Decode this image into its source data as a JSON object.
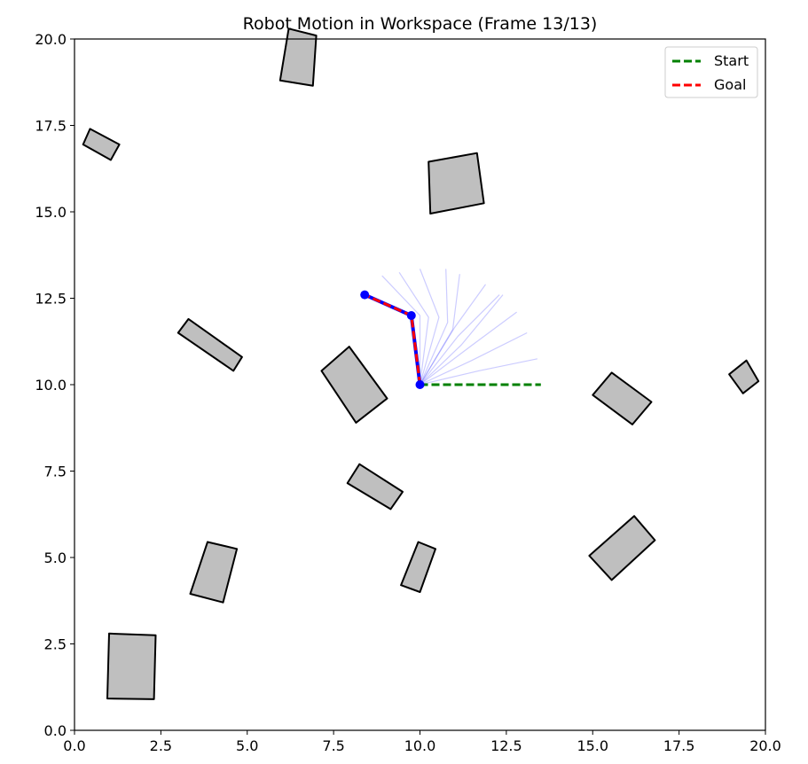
{
  "chart_data": {
    "type": "line",
    "title": "Robot Motion in Workspace (Frame 13/13)",
    "xlim": [
      0,
      20
    ],
    "ylim": [
      0,
      20
    ],
    "xticks": [
      "0.0",
      "2.5",
      "5.0",
      "7.5",
      "10.0",
      "12.5",
      "15.0",
      "17.5",
      "20.0"
    ],
    "yticks": [
      "0.0",
      "2.5",
      "5.0",
      "7.5",
      "10.0",
      "12.5",
      "15.0",
      "17.5",
      "20.0"
    ],
    "xtick_values": [
      0,
      2.5,
      5,
      7.5,
      10,
      12.5,
      15,
      17.5,
      20
    ],
    "ytick_values": [
      0,
      2.5,
      5,
      7.5,
      10,
      12.5,
      15,
      17.5,
      20
    ],
    "grid": false,
    "legend": {
      "placement": "top-right",
      "entries": [
        {
          "label": "Start",
          "color": "#008000",
          "style": "dashed"
        },
        {
          "label": "Goal",
          "color": "#ff0000",
          "style": "dashed"
        }
      ]
    },
    "colors": {
      "obstacle_fill": "#bfbfbf",
      "obstacle_edge": "#000000",
      "robot": "#0000ff",
      "trace": "#0000ff",
      "start": "#008000",
      "goal": "#ff0000"
    },
    "start_config": [
      [
        10.0,
        10.0
      ],
      [
        11.75,
        10.0
      ],
      [
        13.5,
        10.0
      ]
    ],
    "goal_config": [
      [
        10.0,
        10.0
      ],
      [
        9.75,
        12.0
      ],
      [
        8.4,
        12.6
      ]
    ],
    "robot_config": [
      [
        10.0,
        10.0
      ],
      [
        9.75,
        12.0
      ],
      [
        8.4,
        12.6
      ]
    ],
    "trace_configs": [
      [
        [
          10.0,
          10.0
        ],
        [
          11.7,
          10.4
        ],
        [
          13.4,
          10.75
        ]
      ],
      [
        [
          10.0,
          10.0
        ],
        [
          11.5,
          10.7
        ],
        [
          13.1,
          11.5
        ]
      ],
      [
        [
          10.0,
          10.0
        ],
        [
          11.45,
          11.1
        ],
        [
          12.8,
          12.1
        ]
      ],
      [
        [
          10.0,
          10.0
        ],
        [
          11.2,
          11.15
        ],
        [
          12.4,
          12.6
        ]
      ],
      [
        [
          10.0,
          10.0
        ],
        [
          11.1,
          11.4
        ],
        [
          12.3,
          12.6
        ]
      ],
      [
        [
          10.0,
          10.0
        ],
        [
          11.0,
          11.65
        ],
        [
          11.9,
          12.9
        ]
      ],
      [
        [
          10.0,
          10.0
        ],
        [
          10.95,
          11.6
        ],
        [
          11.15,
          13.2
        ]
      ],
      [
        [
          10.0,
          10.0
        ],
        [
          10.8,
          11.8
        ],
        [
          10.75,
          13.35
        ]
      ],
      [
        [
          10.0,
          10.0
        ],
        [
          10.55,
          11.95
        ],
        [
          10.0,
          13.35
        ]
      ],
      [
        [
          10.0,
          10.0
        ],
        [
          10.25,
          11.95
        ],
        [
          9.4,
          13.25
        ]
      ],
      [
        [
          10.0,
          10.0
        ],
        [
          10.0,
          12.0
        ],
        [
          8.9,
          13.15
        ]
      ],
      [
        [
          10.0,
          10.0
        ],
        [
          9.75,
          12.0
        ],
        [
          8.4,
          12.6
        ]
      ]
    ],
    "obstacles": [
      [
        [
          6.2,
          20.3
        ],
        [
          7.0,
          20.1
        ],
        [
          6.9,
          18.65
        ],
        [
          5.95,
          18.8
        ]
      ],
      [
        [
          0.25,
          16.95
        ],
        [
          0.45,
          17.4
        ],
        [
          1.3,
          16.95
        ],
        [
          1.05,
          16.5
        ]
      ],
      [
        [
          10.25,
          16.45
        ],
        [
          11.65,
          16.7
        ],
        [
          11.85,
          15.25
        ],
        [
          10.3,
          14.95
        ]
      ],
      [
        [
          3.0,
          11.5
        ],
        [
          3.3,
          11.9
        ],
        [
          4.85,
          10.8
        ],
        [
          4.6,
          10.4
        ]
      ],
      [
        [
          7.15,
          10.4
        ],
        [
          7.95,
          11.1
        ],
        [
          9.05,
          9.6
        ],
        [
          8.15,
          8.9
        ]
      ],
      [
        [
          15.0,
          9.7
        ],
        [
          15.55,
          10.35
        ],
        [
          16.7,
          9.5
        ],
        [
          16.15,
          8.85
        ]
      ],
      [
        [
          18.95,
          10.3
        ],
        [
          19.45,
          10.7
        ],
        [
          19.8,
          10.1
        ],
        [
          19.35,
          9.75
        ]
      ],
      [
        [
          7.9,
          7.15
        ],
        [
          8.25,
          7.7
        ],
        [
          9.5,
          6.9
        ],
        [
          9.15,
          6.4
        ]
      ],
      [
        [
          14.9,
          5.05
        ],
        [
          15.55,
          4.35
        ],
        [
          16.8,
          5.5
        ],
        [
          16.2,
          6.2
        ]
      ],
      [
        [
          3.35,
          3.95
        ],
        [
          3.85,
          5.45
        ],
        [
          4.7,
          5.25
        ],
        [
          4.3,
          3.7
        ]
      ],
      [
        [
          9.45,
          4.2
        ],
        [
          9.95,
          5.45
        ],
        [
          10.45,
          5.25
        ],
        [
          10.0,
          4.0
        ]
      ],
      [
        [
          1.0,
          2.8
        ],
        [
          2.35,
          2.75
        ],
        [
          2.3,
          0.9
        ],
        [
          0.95,
          0.92
        ]
      ]
    ]
  }
}
